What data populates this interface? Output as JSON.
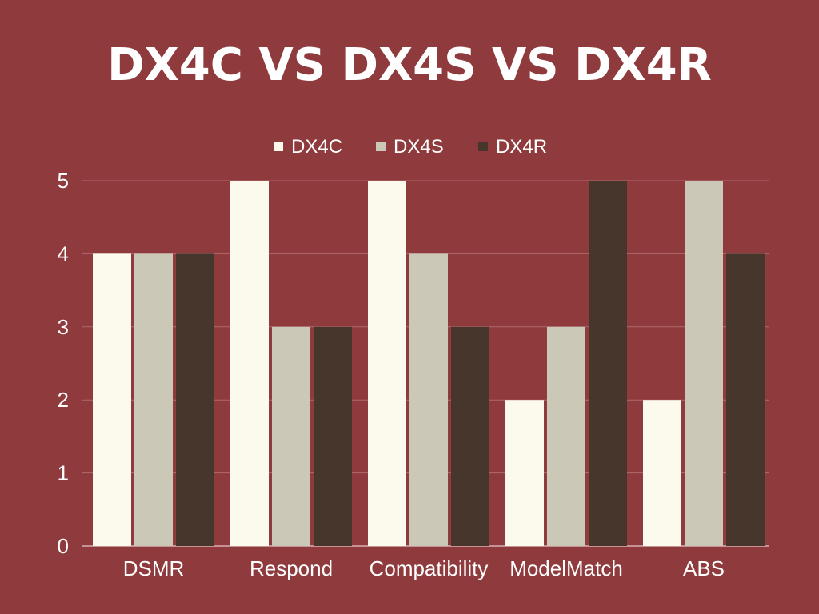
{
  "chart_data": {
    "type": "bar",
    "title": "DX4C VS DX4S VS DX4R",
    "xlabel": "",
    "ylabel": "",
    "ylim": [
      0,
      5
    ],
    "yticks": [
      0,
      1,
      2,
      3,
      4,
      5
    ],
    "grid": true,
    "legend_position": "top",
    "categories": [
      "DSMR",
      "Respond",
      "Compatibility",
      "ModelMatch",
      "ABS"
    ],
    "series": [
      {
        "name": "DX4C",
        "color": "#fcf9ed",
        "values": [
          4,
          5,
          5,
          2,
          2
        ]
      },
      {
        "name": "DX4S",
        "color": "#cbc8b8",
        "values": [
          4,
          3,
          4,
          3,
          5
        ]
      },
      {
        "name": "DX4R",
        "color": "#46362c",
        "values": [
          4,
          3,
          3,
          5,
          4
        ]
      }
    ]
  },
  "colors": {
    "background": "#8f3a3d",
    "gridline": "#b06a6c",
    "text": "#ffffff"
  }
}
